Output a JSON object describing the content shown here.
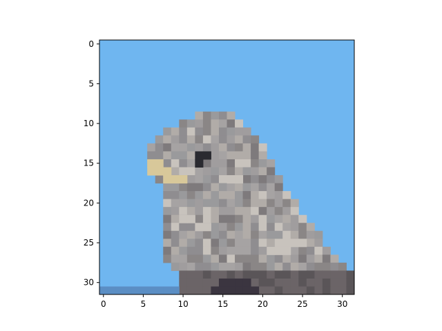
{
  "image": {
    "subject": "small bird (sparrow-like) perched, pixelated",
    "grid_size": 32,
    "colors": {
      "sky": "#6fb6f0",
      "sky_light": "#78bbf1",
      "bird_gray": "#9a9a9c",
      "bird_light": "#c8c3bd",
      "bird_dark": "#5a5558",
      "beak": "#d8c89a",
      "eye": "#2a2a30",
      "perch": "#3b3540",
      "branch_blue": "#5b8ec4"
    }
  },
  "axes": {
    "x_ticks": [
      "0",
      "5",
      "10",
      "15",
      "20",
      "25",
      "30"
    ],
    "y_ticks": [
      "0",
      "5",
      "10",
      "15",
      "20",
      "25",
      "30"
    ]
  }
}
